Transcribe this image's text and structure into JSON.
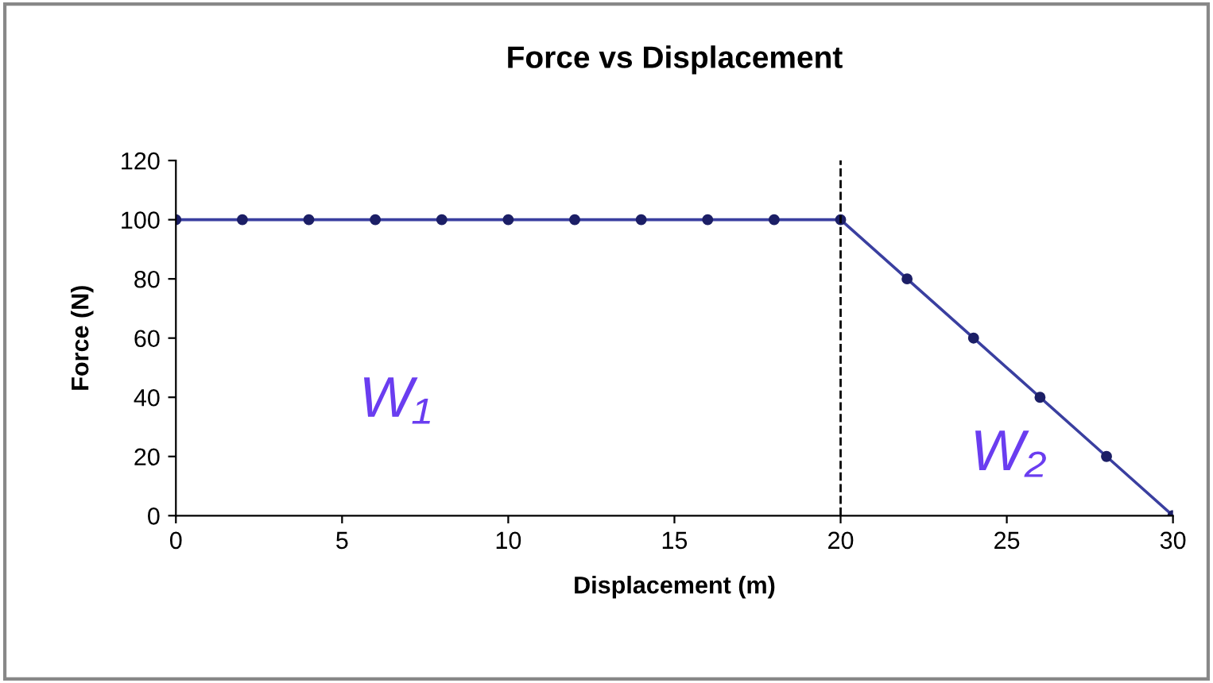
{
  "chart_data": {
    "type": "line",
    "title": "Force vs Displacement",
    "xlabel": "Displacement (m)",
    "ylabel": "Force (N)",
    "series": [
      {
        "color": "#3a3fa0",
        "x": [
          0,
          2,
          4,
          6,
          8,
          10,
          12,
          14,
          16,
          18,
          20,
          22,
          24,
          26,
          28,
          30
        ],
        "values": [
          100,
          100,
          100,
          100,
          100,
          100,
          100,
          100,
          100,
          100,
          100,
          80,
          60,
          40,
          20,
          0
        ]
      }
    ],
    "xlim": [
      0,
      30
    ],
    "xticks": [
      0,
      5,
      10,
      15,
      20,
      25,
      30
    ],
    "ylim": [
      0,
      120
    ],
    "yticks": [
      0,
      20,
      40,
      60,
      80,
      100,
      120
    ],
    "marker": "circle",
    "line_style": "solid",
    "grid": false,
    "legend": false,
    "ref_lines": [
      {
        "axis": "x",
        "value": 20,
        "color": "#000000",
        "line_style": "dashed"
      }
    ],
    "annotations": [
      "W₁",
      "W₂"
    ]
  }
}
